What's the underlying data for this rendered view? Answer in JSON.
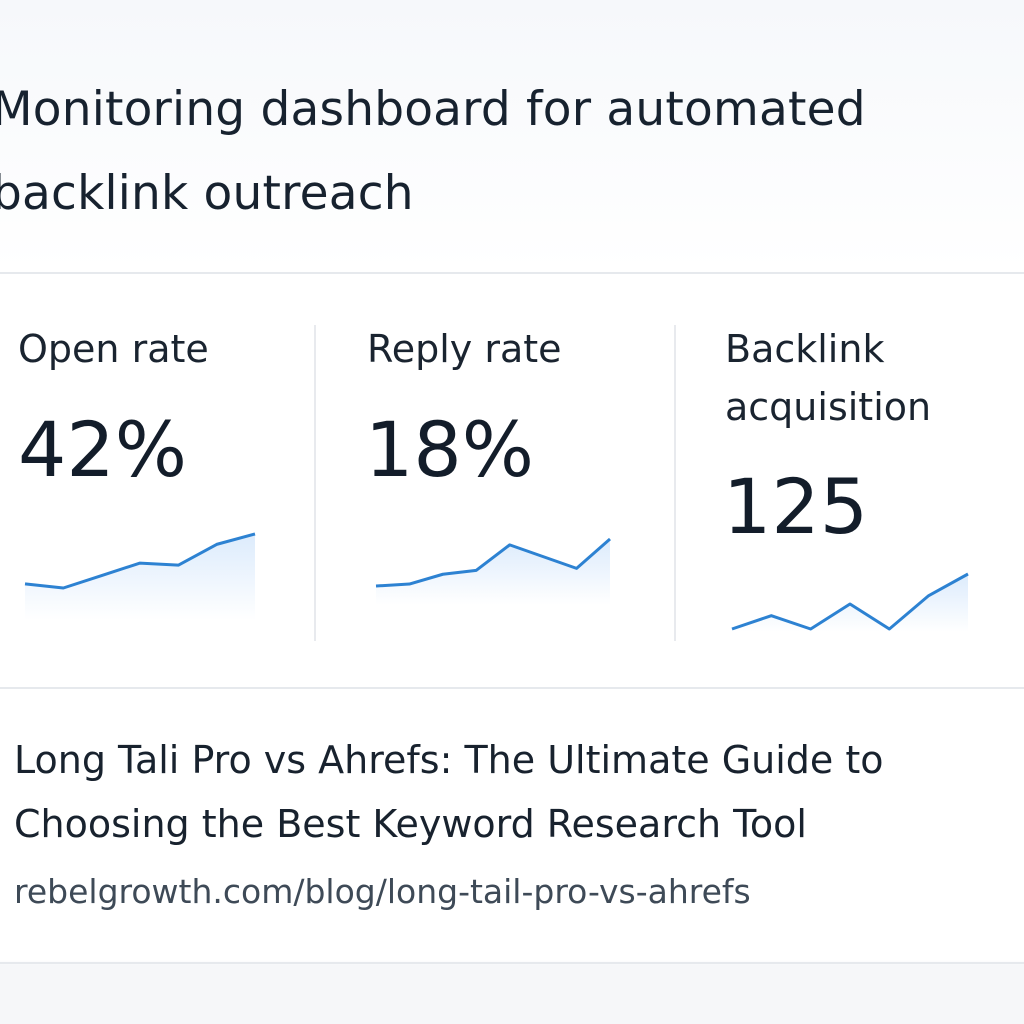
{
  "header": {
    "title": "Monitoring dashboard for automated backlink outreach"
  },
  "metrics": [
    {
      "label": "Open rate",
      "value": "42%",
      "trend": [
        36,
        34,
        40,
        46,
        45,
        55,
        60
      ]
    },
    {
      "label": "Reply rate",
      "value": "18%",
      "trend": [
        34,
        35,
        40,
        42,
        55,
        49,
        43,
        58
      ]
    },
    {
      "label": "Backlink acquisition",
      "value": "125",
      "trend": [
        30,
        38,
        30,
        45,
        30,
        50,
        63
      ]
    }
  ],
  "article": {
    "title": "Long Tali Pro vs Ahrefs: The Ultimate Guide to Choosing the Best Keyword Research Tool",
    "url": "rebelgrowth.com/blog/long-tail-pro-vs-ahrefs"
  },
  "colors": {
    "accent": "#2d82d2",
    "fill": "#e3effc",
    "divider": "#e6e9ed",
    "text": "#14202e"
  }
}
